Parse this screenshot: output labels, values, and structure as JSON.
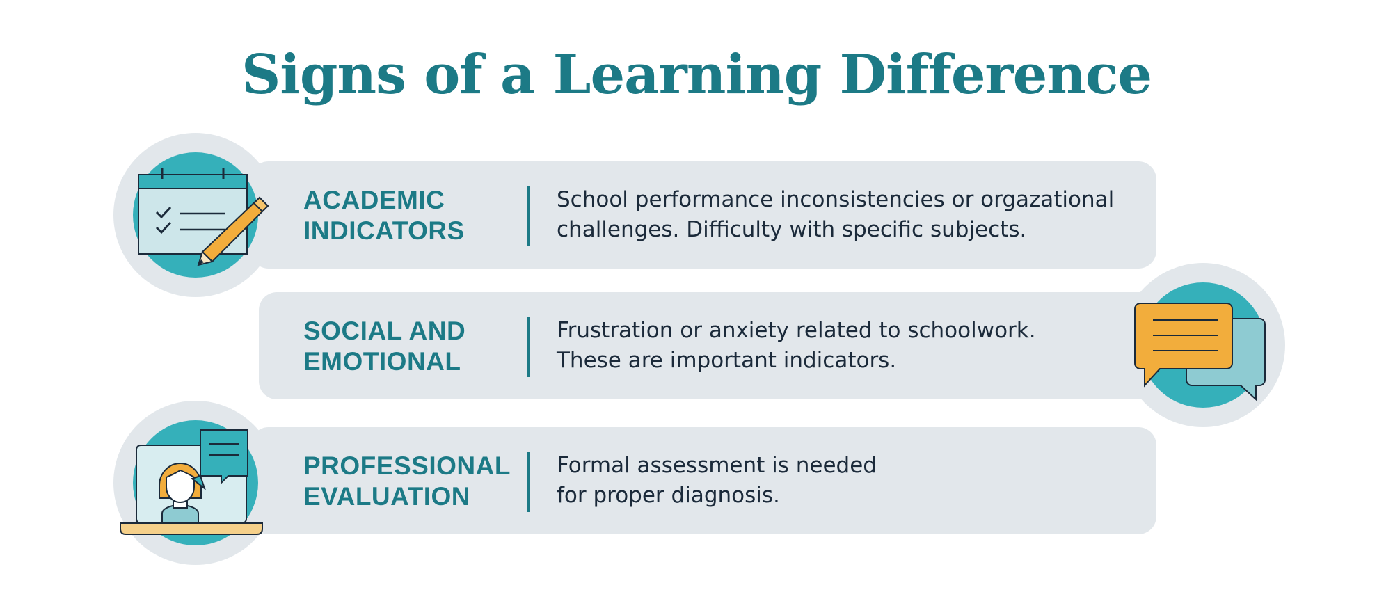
{
  "title": "Signs of a Learning Difference",
  "colors": {
    "accent": "#1c7a86",
    "card": "#e2e7eb",
    "teal": "#35b0ba",
    "orange": "#f2ad3c",
    "text": "#1b2a3a"
  },
  "rows": [
    {
      "heading": "ACADEMIC\nINDICATORS",
      "description": "School performance inconsistencies or orgazational\nchallenges. Difficulty with specific subjects.",
      "icon": "calendar-checklist-pencil-icon"
    },
    {
      "heading": "SOCIAL AND\nEMOTIONAL",
      "description": "Frustration or anxiety related to schoolwork.\nThese are important indicators.",
      "icon": "speech-bubbles-icon"
    },
    {
      "heading": "PROFESSIONAL\nEVALUATION",
      "description": "Formal assessment is needed\nfor proper diagnosis.",
      "icon": "video-call-person-icon"
    }
  ]
}
